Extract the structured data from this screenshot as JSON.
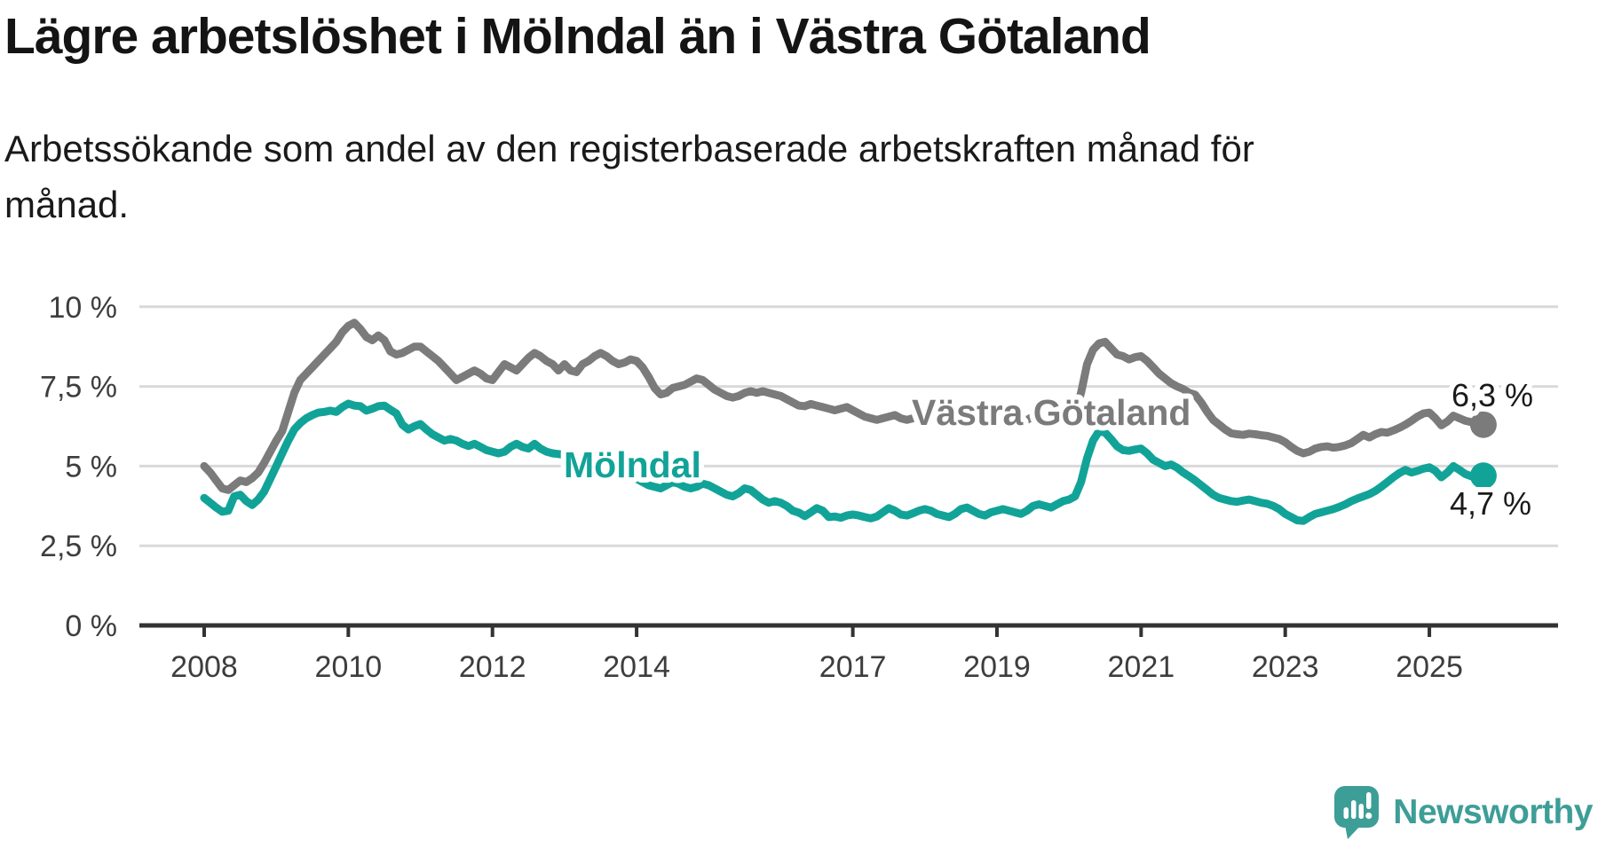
{
  "title": "Lägre arbetslöshet i Mölndal än i Västra Götaland",
  "subtitle": "Arbetssökande som andel av den registerbaserade arbetskraften månad för månad.",
  "colors": {
    "molndal": "#12a398",
    "vastra_gotaland": "#7b7b7b",
    "label_gray": "#737377",
    "axis": "#333333",
    "grid": "#d9d9d9",
    "text": "#1a1a1a",
    "tick_text": "#3d3d3d",
    "brand": "#3d9e97"
  },
  "chart_data": {
    "type": "line",
    "x_monthly_start": "2008-01",
    "x_monthly_end": "2025-10",
    "x_tick_years": [
      2008,
      2010,
      2012,
      2014,
      2017,
      2019,
      2021,
      2023,
      2025
    ],
    "y_ticks": [
      {
        "v": 0,
        "label": "0 %"
      },
      {
        "v": 2.5,
        "label": "2,5 %"
      },
      {
        "v": 5,
        "label": "5 %"
      },
      {
        "v": 7.5,
        "label": "7,5 %"
      },
      {
        "v": 10,
        "label": "10 %"
      }
    ],
    "ylim": [
      0,
      10
    ],
    "grid": "horizontal",
    "series": [
      {
        "name": "Västra Götaland",
        "color": "#7b7b7b",
        "end_label": "6,3 %",
        "last_value": 6.3,
        "values": [
          5.0,
          4.8,
          4.55,
          4.3,
          4.25,
          4.4,
          4.55,
          4.5,
          4.62,
          4.8,
          5.1,
          5.45,
          5.8,
          6.1,
          6.7,
          7.3,
          7.7,
          7.9,
          8.1,
          8.3,
          8.5,
          8.7,
          8.9,
          9.2,
          9.4,
          9.5,
          9.3,
          9.05,
          8.95,
          9.1,
          8.95,
          8.6,
          8.5,
          8.55,
          8.65,
          8.75,
          8.75,
          8.6,
          8.45,
          8.3,
          8.1,
          7.9,
          7.7,
          7.8,
          7.9,
          8.0,
          7.9,
          7.75,
          7.7,
          7.95,
          8.2,
          8.1,
          8.0,
          8.2,
          8.4,
          8.55,
          8.45,
          8.3,
          8.2,
          8.0,
          8.2,
          8.0,
          7.95,
          8.2,
          8.3,
          8.45,
          8.55,
          8.45,
          8.3,
          8.2,
          8.25,
          8.35,
          8.3,
          8.1,
          7.8,
          7.45,
          7.25,
          7.3,
          7.45,
          7.5,
          7.55,
          7.65,
          7.75,
          7.7,
          7.55,
          7.4,
          7.3,
          7.2,
          7.15,
          7.2,
          7.3,
          7.35,
          7.3,
          7.35,
          7.3,
          7.25,
          7.2,
          7.1,
          7.0,
          6.9,
          6.88,
          6.95,
          6.9,
          6.85,
          6.8,
          6.75,
          6.8,
          6.85,
          6.75,
          6.65,
          6.55,
          6.5,
          6.45,
          6.5,
          6.55,
          6.6,
          6.5,
          6.45,
          6.5,
          6.55,
          6.6,
          6.55,
          6.45,
          6.4,
          6.35,
          6.45,
          6.55,
          6.5,
          6.4,
          6.35,
          6.4,
          6.45,
          6.5,
          6.45,
          6.4,
          6.35,
          6.4,
          6.45,
          6.55,
          6.6,
          6.5,
          6.45,
          6.5,
          6.55,
          6.6,
          6.7,
          7.3,
          8.2,
          8.65,
          8.85,
          8.9,
          8.7,
          8.5,
          8.45,
          8.35,
          8.42,
          8.45,
          8.3,
          8.1,
          7.9,
          7.75,
          7.6,
          7.5,
          7.42,
          7.3,
          7.24,
          7.0,
          6.7,
          6.45,
          6.3,
          6.15,
          6.03,
          6.0,
          5.98,
          6.02,
          6.0,
          5.97,
          5.95,
          5.9,
          5.85,
          5.75,
          5.6,
          5.48,
          5.4,
          5.45,
          5.55,
          5.6,
          5.62,
          5.58,
          5.6,
          5.65,
          5.72,
          5.85,
          5.98,
          5.9,
          6.0,
          6.07,
          6.05,
          6.12,
          6.2,
          6.3,
          6.42,
          6.55,
          6.65,
          6.68,
          6.5,
          6.28,
          6.4,
          6.58,
          6.5,
          6.42,
          6.38,
          6.33,
          6.3
        ]
      },
      {
        "name": "Mölndal",
        "color": "#12a398",
        "end_label": "4,7 %",
        "last_value": 4.7,
        "values": [
          4.0,
          3.85,
          3.7,
          3.57,
          3.6,
          4.05,
          4.1,
          3.9,
          3.78,
          3.95,
          4.2,
          4.6,
          5.0,
          5.4,
          5.8,
          6.15,
          6.35,
          6.5,
          6.6,
          6.68,
          6.7,
          6.74,
          6.7,
          6.85,
          6.96,
          6.9,
          6.88,
          6.74,
          6.8,
          6.88,
          6.9,
          6.77,
          6.65,
          6.3,
          6.15,
          6.25,
          6.32,
          6.15,
          6.0,
          5.9,
          5.8,
          5.85,
          5.8,
          5.7,
          5.63,
          5.7,
          5.6,
          5.5,
          5.45,
          5.4,
          5.45,
          5.6,
          5.7,
          5.6,
          5.55,
          5.7,
          5.55,
          5.45,
          5.4,
          5.38,
          5.35,
          5.25,
          5.1,
          4.95,
          5.05,
          5.1,
          5.0,
          4.9,
          4.8,
          4.7,
          4.65,
          4.7,
          4.6,
          4.5,
          4.4,
          4.35,
          4.3,
          4.4,
          4.5,
          4.45,
          4.35,
          4.3,
          4.35,
          4.45,
          4.4,
          4.3,
          4.2,
          4.1,
          4.05,
          4.15,
          4.3,
          4.25,
          4.1,
          3.95,
          3.85,
          3.9,
          3.85,
          3.75,
          3.6,
          3.54,
          3.43,
          3.55,
          3.68,
          3.6,
          3.4,
          3.42,
          3.38,
          3.45,
          3.48,
          3.45,
          3.4,
          3.36,
          3.42,
          3.55,
          3.68,
          3.6,
          3.48,
          3.45,
          3.52,
          3.6,
          3.65,
          3.6,
          3.5,
          3.45,
          3.4,
          3.5,
          3.65,
          3.7,
          3.6,
          3.5,
          3.45,
          3.55,
          3.6,
          3.65,
          3.6,
          3.55,
          3.5,
          3.6,
          3.75,
          3.8,
          3.75,
          3.7,
          3.8,
          3.9,
          3.95,
          4.05,
          4.5,
          5.25,
          5.8,
          6.1,
          6.05,
          5.85,
          5.62,
          5.5,
          5.48,
          5.52,
          5.55,
          5.4,
          5.2,
          5.1,
          5.0,
          5.05,
          4.95,
          4.8,
          4.68,
          4.55,
          4.4,
          4.25,
          4.1,
          4.0,
          3.95,
          3.9,
          3.88,
          3.92,
          3.95,
          3.9,
          3.85,
          3.82,
          3.75,
          3.65,
          3.5,
          3.4,
          3.3,
          3.28,
          3.4,
          3.5,
          3.55,
          3.6,
          3.65,
          3.72,
          3.8,
          3.9,
          3.98,
          4.05,
          4.12,
          4.22,
          4.35,
          4.5,
          4.65,
          4.78,
          4.88,
          4.8,
          4.85,
          4.92,
          4.96,
          4.85,
          4.65,
          4.8,
          5.0,
          4.88,
          4.75,
          4.68,
          4.78,
          4.7
        ]
      }
    ]
  },
  "branding": {
    "logo_text": "Newsworthy"
  }
}
